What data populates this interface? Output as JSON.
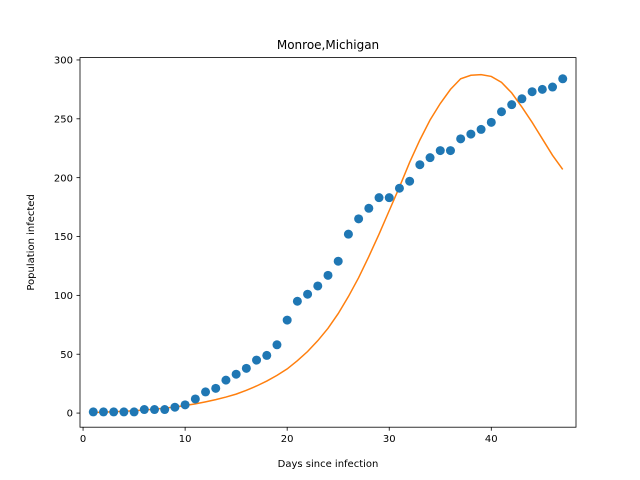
{
  "chart_data": {
    "type": "scatter",
    "title": "Monroe,Michigan",
    "xlabel": "Days since infection",
    "ylabel": "Population infected",
    "xlim": [
      -0.3,
      48.3
    ],
    "ylim": [
      -12,
      302
    ],
    "xticks": [
      0,
      10,
      20,
      30,
      40
    ],
    "yticks": [
      0,
      50,
      100,
      150,
      200,
      250,
      300
    ],
    "grid": false,
    "legend": "none",
    "series": [
      {
        "kind": "scatter",
        "color": "#1f77b4",
        "x": [
          1,
          2,
          3,
          4,
          5,
          6,
          7,
          8,
          9,
          10,
          11,
          12,
          13,
          14,
          15,
          16,
          17,
          18,
          19,
          20,
          21,
          22,
          23,
          24,
          25,
          26,
          27,
          28,
          29,
          30,
          31,
          32,
          33,
          34,
          35,
          36,
          37,
          38,
          39,
          40,
          41,
          42,
          43,
          44,
          45,
          46,
          47
        ],
        "y": [
          1,
          1,
          1,
          1,
          1,
          3,
          3,
          3,
          5,
          7,
          12,
          18,
          21,
          28,
          33,
          38,
          45,
          49,
          58,
          79,
          95,
          101,
          108,
          117,
          129,
          152,
          165,
          174,
          183,
          183,
          191,
          197,
          211,
          217,
          223,
          223,
          233,
          237,
          241,
          247,
          256,
          262,
          267,
          273,
          275,
          277,
          284
        ]
      },
      {
        "kind": "line",
        "color": "#ff7f0e",
        "x": [
          1,
          2,
          3,
          4,
          5,
          6,
          7,
          8,
          9,
          10,
          11,
          12,
          13,
          14,
          15,
          16,
          17,
          18,
          19,
          20,
          21,
          22,
          23,
          24,
          25,
          26,
          27,
          28,
          29,
          30,
          31,
          32,
          33,
          34,
          35,
          36,
          37,
          38,
          39,
          40,
          41,
          42,
          43,
          44,
          45,
          46,
          47
        ],
        "y": [
          0.5,
          0.8,
          1.1,
          1.5,
          2,
          2.6,
          3.3,
          4.2,
          5.2,
          6.4,
          7.8,
          9.5,
          11.4,
          13.6,
          16.1,
          19.3,
          23,
          27.2,
          32,
          37.5,
          44.5,
          52.3,
          61.5,
          72,
          84.5,
          99,
          115,
          133,
          152,
          172,
          192,
          213,
          232,
          249,
          263,
          275,
          284,
          287,
          287.5,
          286,
          281,
          272,
          260,
          247,
          233,
          219,
          207
        ]
      }
    ]
  }
}
